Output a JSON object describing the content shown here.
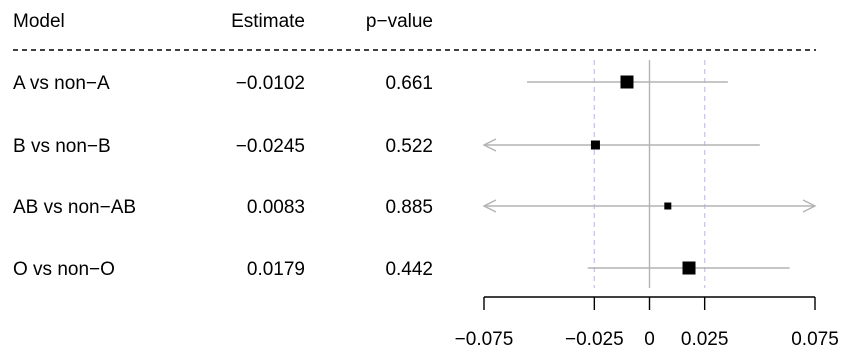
{
  "chart_data": {
    "type": "forest",
    "columns": [
      "Model",
      "Estimate",
      "p−value"
    ],
    "rows": [
      {
        "model": "A vs non−A",
        "estimate_label": "−0.0102",
        "p_value": "0.661",
        "estimate": -0.0102,
        "ci_low": -0.0555,
        "ci_high": 0.0355,
        "box": "large"
      },
      {
        "model": "B vs non−B",
        "estimate_label": "−0.0245",
        "p_value": "0.522",
        "estimate": -0.0245,
        "ci_low": -0.09,
        "ci_high": 0.05,
        "box": "small",
        "ci_low_arrow": true
      },
      {
        "model": "AB vs non−AB",
        "estimate_label": "0.0083",
        "p_value": "0.885",
        "estimate": 0.0083,
        "ci_low": -0.09,
        "ci_high": 0.09,
        "box": "smallest",
        "ci_low_arrow": true,
        "ci_high_arrow": true
      },
      {
        "model": "O vs non−O",
        "estimate_label": "0.0179",
        "p_value": "0.442",
        "estimate": 0.0179,
        "ci_low": -0.028,
        "ci_high": 0.0635,
        "box": "large"
      }
    ],
    "xlim": [
      -0.075,
      0.075
    ],
    "x_ticks": [
      -0.075,
      -0.025,
      0,
      0.025,
      0.075
    ],
    "x_tick_labels": [
      "−0.075",
      "−0.025",
      "0",
      "0.025",
      "0.075"
    ],
    "reference_line": 0,
    "dashed_reference_lines": [
      -0.025,
      0.025
    ],
    "colors": {
      "box": "#000000",
      "ci_line": "#b3b3b3",
      "zero_line": "#b3b3b3",
      "dashed_lines": "#c8c8f4",
      "axis": "#000000",
      "header_rule": "#000000"
    }
  }
}
